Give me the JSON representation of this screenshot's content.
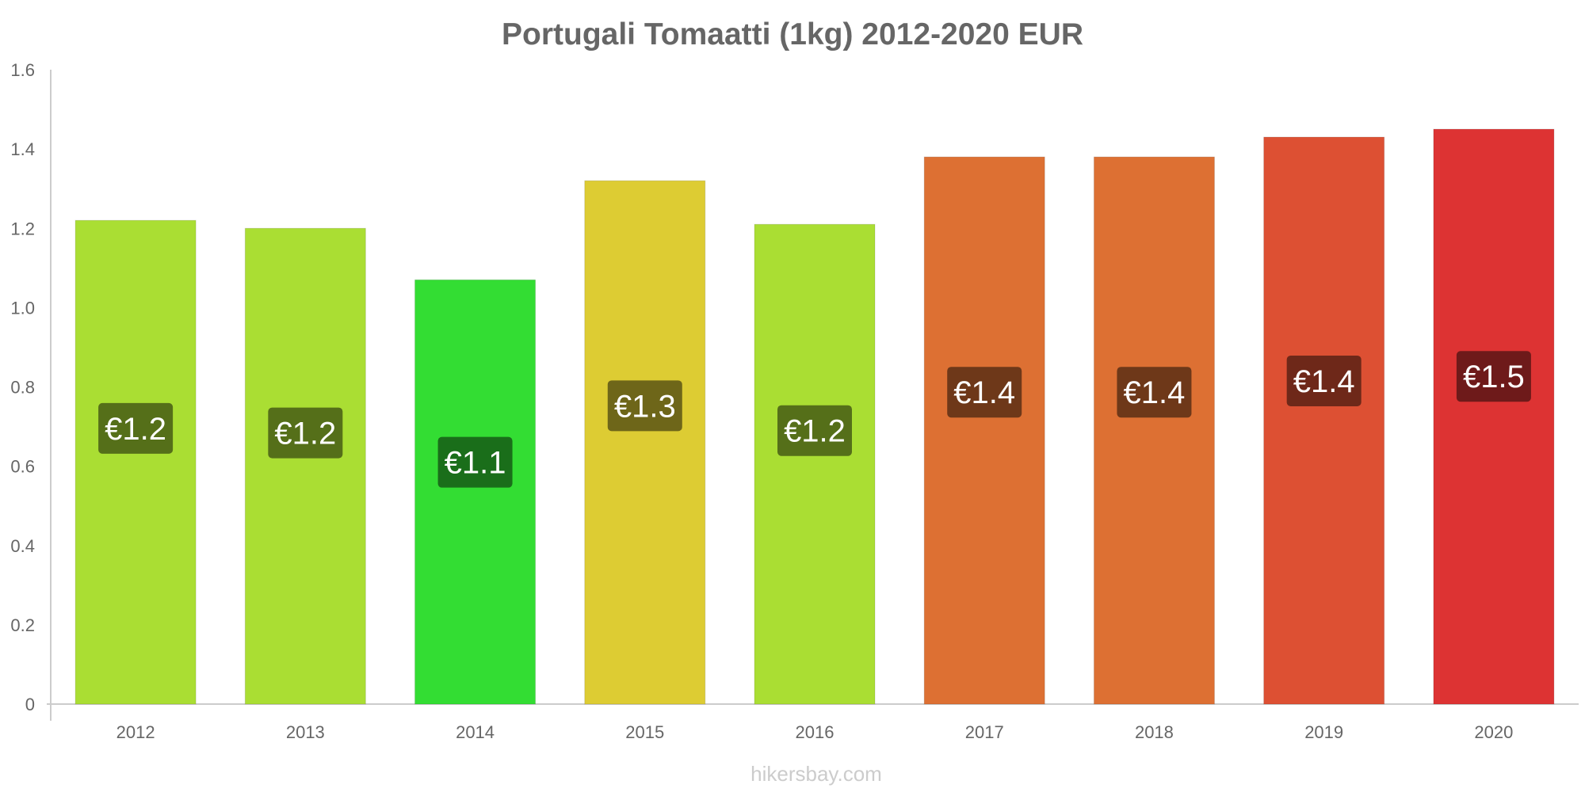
{
  "chart_data": {
    "type": "bar",
    "title": "Portugali Tomaatti (1kg) 2012-2020 EUR",
    "xlabel": "",
    "ylabel": "",
    "categories": [
      "2012",
      "2013",
      "2014",
      "2015",
      "2016",
      "2017",
      "2018",
      "2019",
      "2020"
    ],
    "values": [
      1.22,
      1.2,
      1.07,
      1.32,
      1.21,
      1.38,
      1.38,
      1.43,
      1.45
    ],
    "value_labels": [
      "€1.2",
      "€1.2",
      "€1.1",
      "€1.3",
      "€1.2",
      "€1.4",
      "€1.4",
      "€1.4",
      "€1.5"
    ],
    "bar_colors": [
      "#aade33",
      "#aade33",
      "#33dd33",
      "#ddcc33",
      "#aade33",
      "#dd7033",
      "#dd7033",
      "#dd5033",
      "#dd3333"
    ],
    "label_bg_colors": [
      "#556f19",
      "#556f19",
      "#1a6e1a",
      "#6e6619",
      "#556f19",
      "#6e3819",
      "#6e3819",
      "#6e2819",
      "#6e1a1a"
    ],
    "ylim": [
      0,
      1.6
    ],
    "yticks": [
      0,
      0.2,
      0.4,
      0.6,
      0.8,
      1.0,
      1.2,
      1.4,
      1.6
    ],
    "ytick_labels": [
      "0",
      "0.2",
      "0.4",
      "0.6",
      "0.8",
      "1.0",
      "1.2",
      "1.4",
      "1.6"
    ],
    "grid": false,
    "legend": "none"
  },
  "footer": {
    "source": "hikersbay.com"
  }
}
